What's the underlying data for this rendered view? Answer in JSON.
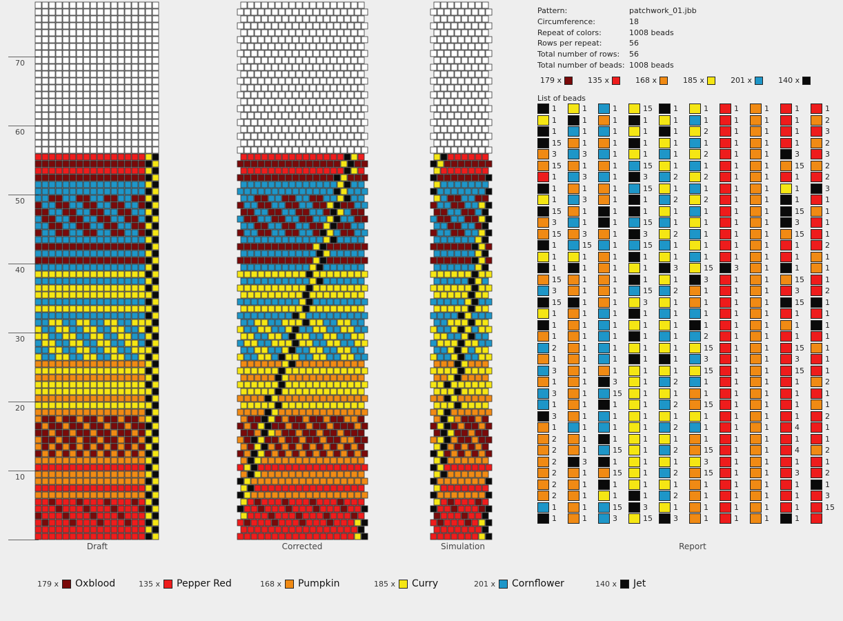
{
  "ruler": {
    "labels": [
      "70",
      "60",
      "50",
      "40",
      "30",
      "20",
      "10"
    ]
  },
  "captions": {
    "draft": "Draft",
    "corrected": "Corrected",
    "simulation": "Simulation",
    "report": "Report"
  },
  "info": {
    "rows": [
      {
        "k": "Pattern:",
        "v": "patchwork_01.jbb"
      },
      {
        "k": "Circumference:",
        "v": "18"
      },
      {
        "k": "Repeat of colors:",
        "v": "1008 beads"
      },
      {
        "k": "Rows per repeat:",
        "v": "56"
      },
      {
        "k": "Total number of rows:",
        "v": "56"
      },
      {
        "k": "Total number of beads:",
        "v": "1008 beads"
      }
    ],
    "list_title": "List of beads"
  },
  "colors": [
    {
      "count": "179 x",
      "name": "Oxblood",
      "hex": "#7a0a0a"
    },
    {
      "count": "135 x",
      "name": "Pepper Red",
      "hex": "#ee1c1c"
    },
    {
      "count": "168 x",
      "name": "Pumpkin",
      "hex": "#f08a14"
    },
    {
      "count": "185 x",
      "name": "Curry",
      "hex": "#f5e614"
    },
    {
      "count": "201 x",
      "name": "Cornflower",
      "hex": "#1e96c8"
    },
    {
      "count": "140 x",
      "name": "Jet",
      "hex": "#0a0a0a"
    }
  ],
  "report": [
    {
      "c": [
        "K",
        "Y",
        "K",
        "K",
        "O",
        "O",
        "R",
        "K",
        "Y",
        "K",
        "O",
        "O",
        "K",
        "Y",
        "K",
        "O",
        "C",
        "K",
        "Y",
        "K",
        "O",
        "C",
        "O",
        "C",
        "O",
        "C",
        "C",
        "K",
        "O",
        "O",
        "O",
        "O",
        "O",
        "O",
        "O",
        "C",
        "K"
      ],
      "n": [
        "1",
        "1",
        "1",
        "15",
        "3",
        "15",
        "1",
        "1",
        "1",
        "15",
        "3",
        "15",
        "1",
        "1",
        "1",
        "15",
        "3",
        "15",
        "1",
        "1",
        "1",
        "2",
        "1",
        "3",
        "1",
        "3",
        "1",
        "3",
        "1",
        "2",
        "2",
        "2",
        "2",
        "2",
        "2",
        "1",
        "1"
      ]
    },
    {
      "c": [
        "Y",
        "K",
        "C",
        "O",
        "C",
        "O",
        "C",
        "O",
        "C",
        "O",
        "C",
        "O",
        "C",
        "Y",
        "K",
        "O",
        "O",
        "K",
        "O",
        "O",
        "O",
        "O",
        "O",
        "O",
        "O",
        "O",
        "O",
        "O",
        "C",
        "O",
        "O",
        "K",
        "O",
        "O",
        "O",
        "O",
        "O"
      ],
      "n": [
        "1",
        "1",
        "1",
        "1",
        "3",
        "1",
        "3",
        "1",
        "3",
        "1",
        "1",
        "3",
        "15",
        "1",
        "1",
        "1",
        "1",
        "1",
        "1",
        "1",
        "1",
        "1",
        "1",
        "1",
        "1",
        "1",
        "1",
        "1",
        "1",
        "1",
        "1",
        "3",
        "1",
        "1",
        "1",
        "1",
        "1"
      ]
    },
    {
      "c": [
        "C",
        "O",
        "C",
        "O",
        "C",
        "O",
        "C",
        "O",
        "O",
        "K",
        "K",
        "O",
        "C",
        "O",
        "O",
        "O",
        "O",
        "O",
        "C",
        "C",
        "C",
        "C",
        "C",
        "O",
        "K",
        "C",
        "K",
        "C",
        "C",
        "K",
        "C",
        "K",
        "O",
        "K",
        "Y",
        "C",
        "C"
      ],
      "n": [
        "1",
        "1",
        "1",
        "1",
        "1",
        "1",
        "1",
        "1",
        "1",
        "1",
        "1",
        "1",
        "1",
        "1",
        "1",
        "1",
        "1",
        "1",
        "1",
        "1",
        "1",
        "1",
        "1",
        "1",
        "3",
        "15",
        "1",
        "1",
        "1",
        "1",
        "15",
        "1",
        "15",
        "1",
        "1",
        "15",
        "3"
      ]
    },
    {
      "c": [
        "Y",
        "K",
        "Y",
        "K",
        "Y",
        "C",
        "K",
        "C",
        "K",
        "K",
        "C",
        "K",
        "C",
        "K",
        "Y",
        "K",
        "C",
        "Y",
        "K",
        "Y",
        "K",
        "Y",
        "K",
        "Y",
        "Y",
        "Y",
        "Y",
        "Y",
        "Y",
        "Y",
        "Y",
        "Y",
        "Y",
        "Y",
        "K",
        "K",
        "Y"
      ],
      "n": [
        "15",
        "1",
        "1",
        "1",
        "1",
        "15",
        "3",
        "15",
        "1",
        "1",
        "15",
        "3",
        "15",
        "1",
        "1",
        "1",
        "15",
        "3",
        "1",
        "1",
        "1",
        "1",
        "1",
        "1",
        "1",
        "1",
        "1",
        "1",
        "1",
        "1",
        "1",
        "1",
        "1",
        "1",
        "1",
        "3",
        "15"
      ]
    },
    {
      "c": [
        "K",
        "Y",
        "K",
        "Y",
        "C",
        "Y",
        "C",
        "Y",
        "C",
        "Y",
        "C",
        "Y",
        "C",
        "Y",
        "K",
        "Y",
        "C",
        "Y",
        "C",
        "Y",
        "C",
        "Y",
        "K",
        "Y",
        "C",
        "Y",
        "C",
        "Y",
        "C",
        "Y",
        "C",
        "Y",
        "C",
        "Y",
        "C",
        "Y",
        "K"
      ],
      "n": [
        "1",
        "1",
        "1",
        "1",
        "1",
        "1",
        "2",
        "1",
        "2",
        "1",
        "1",
        "2",
        "1",
        "1",
        "3",
        "1",
        "2",
        "1",
        "1",
        "1",
        "1",
        "1",
        "1",
        "1",
        "2",
        "1",
        "2",
        "1",
        "2",
        "1",
        "2",
        "1",
        "2",
        "1",
        "2",
        "1",
        "3"
      ]
    },
    {
      "c": [
        "Y",
        "C",
        "Y",
        "C",
        "Y",
        "C",
        "Y",
        "C",
        "Y",
        "C",
        "Y",
        "C",
        "Y",
        "C",
        "Y",
        "K",
        "O",
        "O",
        "C",
        "K",
        "C",
        "Y",
        "C",
        "Y",
        "C",
        "O",
        "O",
        "Y",
        "C",
        "O",
        "O",
        "Y",
        "O",
        "O",
        "O",
        "O",
        "O"
      ],
      "n": [
        "1",
        "1",
        "2",
        "1",
        "2",
        "1",
        "2",
        "1",
        "2",
        "1",
        "1",
        "1",
        "1",
        "1",
        "15",
        "3",
        "1",
        "1",
        "1",
        "1",
        "2",
        "15",
        "3",
        "15",
        "1",
        "1",
        "15",
        "1",
        "1",
        "1",
        "15",
        "3",
        "15",
        "1",
        "1",
        "1",
        "1"
      ]
    },
    {
      "c": [
        "R",
        "R",
        "R",
        "R",
        "R",
        "R",
        "R",
        "R",
        "R",
        "R",
        "R",
        "R",
        "R",
        "R",
        "K",
        "R",
        "R",
        "R",
        "R",
        "R",
        "R",
        "R",
        "R",
        "R",
        "R",
        "R",
        "R",
        "R",
        "R",
        "R",
        "R",
        "R",
        "R",
        "R",
        "R",
        "R",
        "R"
      ],
      "n": [
        "1",
        "1",
        "1",
        "1",
        "1",
        "1",
        "1",
        "1",
        "1",
        "1",
        "1",
        "1",
        "1",
        "1",
        "3",
        "1",
        "1",
        "1",
        "1",
        "1",
        "1",
        "1",
        "1",
        "1",
        "1",
        "1",
        "1",
        "1",
        "1",
        "1",
        "1",
        "1",
        "1",
        "1",
        "1",
        "1",
        "1"
      ]
    },
    {
      "c": [
        "O",
        "O",
        "O",
        "O",
        "O",
        "O",
        "O",
        "O",
        "O",
        "O",
        "O",
        "O",
        "O",
        "O",
        "O",
        "O",
        "O",
        "O",
        "O",
        "O",
        "O",
        "O",
        "O",
        "O",
        "O",
        "O",
        "O",
        "O",
        "O",
        "O",
        "O",
        "O",
        "O",
        "O",
        "O",
        "O",
        "O"
      ],
      "n": [
        "1",
        "1",
        "1",
        "1",
        "1",
        "1",
        "1",
        "1",
        "1",
        "1",
        "1",
        "1",
        "1",
        "1",
        "1",
        "1",
        "1",
        "1",
        "1",
        "1",
        "1",
        "1",
        "1",
        "1",
        "1",
        "1",
        "1",
        "1",
        "1",
        "1",
        "1",
        "1",
        "1",
        "1",
        "1",
        "1",
        "1"
      ]
    },
    {
      "c": [
        "R",
        "R",
        "R",
        "R",
        "K",
        "O",
        "R",
        "Y",
        "K",
        "K",
        "K",
        "O",
        "R",
        "R",
        "K",
        "O",
        "R",
        "K",
        "R",
        "O",
        "R",
        "R",
        "R",
        "R",
        "R",
        "R",
        "R",
        "R",
        "R",
        "R",
        "R",
        "R",
        "R",
        "R",
        "R",
        "R",
        "K"
      ],
      "n": [
        "1",
        "1",
        "1",
        "1",
        "3",
        "15",
        "1",
        "1",
        "1",
        "15",
        "3",
        "15",
        "1",
        "1",
        "1",
        "15",
        "3",
        "15",
        "1",
        "1",
        "1",
        "15",
        "3",
        "15",
        "1",
        "1",
        "1",
        "1",
        "4",
        "1",
        "4",
        "1",
        "3",
        "1",
        "1",
        "1",
        "1"
      ]
    },
    {
      "c": [
        "R",
        "O",
        "R",
        "O",
        "R",
        "O",
        "R",
        "K",
        "R",
        "O",
        "R",
        "R",
        "R",
        "O",
        "O",
        "R",
        "R",
        "K",
        "R",
        "K",
        "R",
        "O",
        "R",
        "R",
        "O",
        "R",
        "O",
        "R",
        "R",
        "R",
        "O",
        "R",
        "R",
        "K",
        "R",
        "R",
        "R"
      ],
      "n": [
        "1",
        "2",
        "3",
        "2",
        "3",
        "2",
        "2",
        "3",
        "1",
        "1",
        "1",
        "1",
        "2",
        "1",
        "1",
        "1",
        "2",
        "1",
        "1",
        "1",
        "1",
        "1",
        "1",
        "1",
        "2",
        "1",
        "1",
        "2",
        "1",
        "1",
        "2",
        "1",
        "2",
        "1",
        "3",
        "15",
        ""
      ]
    }
  ]
}
